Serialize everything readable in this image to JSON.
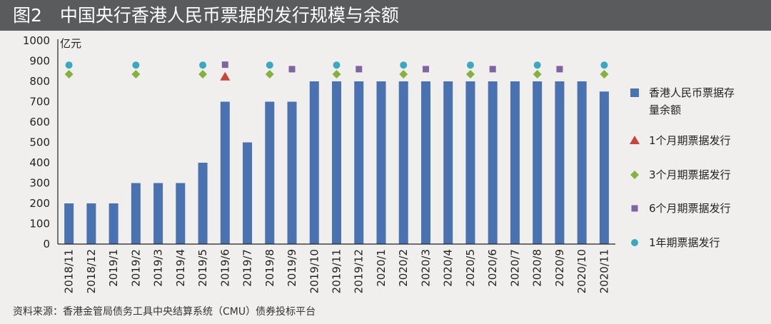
{
  "header": {
    "title": "图2　中国央行香港人民币票据的发行规模与余额"
  },
  "source": "资料来源：香港金管局债务工具中央结算系统（CMU）债券投标平台",
  "colors": {
    "bar": "#4a72b0",
    "m1": "#c9453b",
    "m3": "#85b23f",
    "m6": "#8064a2",
    "y1": "#3aa8c1",
    "title_bg": "#5a5b5d",
    "page_bg": "#f0efed"
  },
  "chart_data": {
    "type": "bar",
    "unit": "亿元",
    "ylim": [
      0,
      1000
    ],
    "yticks": [
      0,
      100,
      200,
      300,
      400,
      500,
      600,
      700,
      800,
      900,
      1000
    ],
    "grid": false,
    "legend_position": "right",
    "categories": [
      "2018/11",
      "2018/12",
      "2019/1",
      "2019/2",
      "2019/3",
      "2019/4",
      "2019/5",
      "2019/6",
      "2019/7",
      "2019/8",
      "2019/9",
      "2019/10",
      "2019/11",
      "2019/12",
      "2020/1",
      "2020/2",
      "2020/3",
      "2020/4",
      "2020/5",
      "2020/6",
      "2020/7",
      "2020/8",
      "2020/9",
      "2020/10",
      "2020/11"
    ],
    "series": [
      {
        "name": "香港人民币票据存量余额",
        "legend_lines": [
          "香港人民币票据存",
          "量余额"
        ],
        "marker": "bar",
        "color_key": "bar",
        "values": [
          200,
          200,
          200,
          300,
          300,
          300,
          400,
          700,
          500,
          700,
          700,
          800,
          800,
          800,
          800,
          800,
          800,
          800,
          800,
          800,
          800,
          800,
          800,
          800,
          750
        ]
      },
      {
        "name": "1个月期票据发行",
        "marker": "triangle",
        "color_key": "m1",
        "issued": [
          0,
          0,
          0,
          0,
          0,
          0,
          0,
          1,
          0,
          0,
          0,
          0,
          0,
          0,
          0,
          0,
          0,
          0,
          0,
          0,
          0,
          0,
          0,
          0,
          0
        ]
      },
      {
        "name": "3个月期票据发行",
        "marker": "diamond",
        "color_key": "m3",
        "issued": [
          1,
          0,
          0,
          1,
          0,
          0,
          1,
          0,
          0,
          1,
          0,
          0,
          1,
          0,
          0,
          1,
          0,
          0,
          1,
          0,
          0,
          1,
          0,
          0,
          1
        ]
      },
      {
        "name": "6个月期票据发行",
        "marker": "square",
        "color_key": "m6",
        "issued": [
          0,
          0,
          0,
          0,
          0,
          0,
          0,
          1,
          0,
          0,
          1,
          0,
          0,
          1,
          0,
          0,
          1,
          0,
          0,
          1,
          0,
          0,
          1,
          0,
          0
        ]
      },
      {
        "name": "1年期票据发行",
        "marker": "circle",
        "color_key": "y1",
        "issued": [
          1,
          0,
          0,
          1,
          0,
          0,
          1,
          0,
          0,
          1,
          0,
          0,
          1,
          0,
          0,
          1,
          0,
          0,
          1,
          0,
          0,
          1,
          0,
          0,
          1
        ]
      }
    ]
  }
}
